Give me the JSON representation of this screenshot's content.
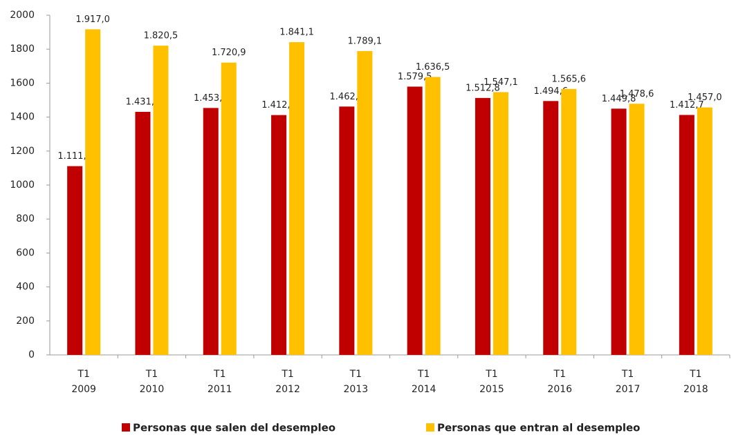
{
  "chart_data": {
    "type": "bar",
    "categories": [
      "T1\n2009",
      "T1\n2010",
      "T1\n2011",
      "T1\n2012",
      "T1\n2013",
      "T1\n2014",
      "T1\n2015",
      "T1\n2016",
      "T1\n2017",
      "T1\n2018"
    ],
    "series": [
      {
        "name": "Personas que salen del desempleo",
        "color": "#c00000",
        "values": [
          1111.3,
          1431.0,
          1453.8,
          1412.0,
          1462.1,
          1579.5,
          1512.8,
          1494.6,
          1449.8,
          1412.7
        ],
        "value_labels": [
          "1.111,3",
          "1.431,0",
          "1.453,8",
          "1.412,0",
          "1.462,1",
          "1.579,5",
          "1.512,8",
          "1.494,6",
          "1.449,8",
          "1.412,7"
        ]
      },
      {
        "name": "Personas que entran al desempleo",
        "color": "#ffc000",
        "values": [
          1917.0,
          1820.5,
          1720.9,
          1841.1,
          1789.1,
          1636.5,
          1547.1,
          1565.6,
          1478.6,
          1457.0
        ],
        "value_labels": [
          "1.917,0",
          "1.820,5",
          "1.720,9",
          "1.841,1",
          "1.789,1",
          "1.636,5",
          "1.547,1",
          "1.565,6",
          "1.478,6",
          "1.457,0"
        ]
      }
    ],
    "ylim": [
      0,
      2000
    ],
    "yticks": [
      0,
      200,
      400,
      600,
      800,
      1000,
      1200,
      1400,
      1600,
      1800,
      2000
    ],
    "grid": false,
    "legend": "bottom"
  }
}
